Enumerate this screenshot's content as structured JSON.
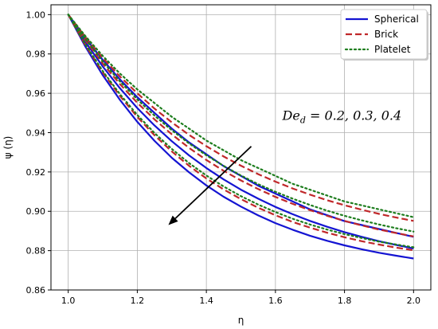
{
  "chart_data": {
    "type": "line",
    "xlabel": "η",
    "ylabel": "ψ (η)",
    "xlim": [
      0.95,
      2.05
    ],
    "ylim": [
      0.86,
      1.005
    ],
    "xticks": [
      1.0,
      1.2,
      1.4,
      1.6,
      1.8,
      2.0
    ],
    "xtick_labels": [
      "1.0",
      "1.2",
      "1.4",
      "1.6",
      "1.8",
      "2.0"
    ],
    "yticks": [
      0.86,
      0.88,
      0.9,
      0.92,
      0.94,
      0.96,
      0.98,
      1.0
    ],
    "ytick_labels": [
      "0.86",
      "0.88",
      "0.90",
      "0.92",
      "0.94",
      "0.96",
      "0.98",
      "1.00"
    ],
    "grid": true,
    "legend_position": "top-right",
    "annotation": "De_d = 0.2, 0.3, 0.4",
    "annotation_parts": {
      "base": "De",
      "sub": "d",
      "rest": " = 0.2, 0.3, 0.4"
    },
    "arrow": {
      "from": [
        1.53,
        0.933
      ],
      "to": [
        1.29,
        0.893
      ]
    },
    "x": [
      1.0,
      1.05,
      1.1,
      1.15,
      1.2,
      1.25,
      1.3,
      1.35,
      1.4,
      1.45,
      1.5,
      1.55,
      1.6,
      1.65,
      1.7,
      1.75,
      1.8,
      1.85,
      1.9,
      1.95,
      2.0
    ],
    "series": [
      {
        "name": "Spherical",
        "group": "Spherical",
        "color": "#1414d2",
        "dash": "solid",
        "values": [
          1.0,
          0.9836,
          0.9692,
          0.9566,
          0.9455,
          0.9358,
          0.9272,
          0.9198,
          0.9132,
          0.9074,
          0.9024,
          0.8979,
          0.894,
          0.8906,
          0.8876,
          0.885,
          0.8827,
          0.8807,
          0.8789,
          0.8774,
          0.876
        ]
      },
      {
        "name": "Spherical",
        "group": "Spherical",
        "color": "#1414d2",
        "dash": "solid",
        "values": [
          1.0,
          0.9861,
          0.9736,
          0.9625,
          0.9525,
          0.9436,
          0.9356,
          0.9284,
          0.922,
          0.9162,
          0.911,
          0.9064,
          0.9022,
          0.8985,
          0.8951,
          0.8921,
          0.8894,
          0.887,
          0.8848,
          0.8829,
          0.8811
        ]
      },
      {
        "name": "Spherical",
        "group": "Spherical",
        "color": "#1414d2",
        "dash": "solid",
        "values": [
          1.0,
          0.988,
          0.977,
          0.967,
          0.958,
          0.95,
          0.942,
          0.935,
          0.929,
          0.923,
          0.918,
          0.913,
          0.909,
          0.905,
          0.901,
          0.898,
          0.895,
          0.893,
          0.891,
          0.889,
          0.887
        ]
      },
      {
        "name": "Brick",
        "group": "Brick",
        "color": "#c0282a",
        "dash": "dashed",
        "values": [
          1.0,
          0.9844,
          0.9707,
          0.9586,
          0.948,
          0.9386,
          0.9304,
          0.9231,
          0.9167,
          0.9111,
          0.9062,
          0.9018,
          0.898,
          0.8946,
          0.8917,
          0.8891,
          0.8868,
          0.8848,
          0.8831,
          0.8815,
          0.8802
        ]
      },
      {
        "name": "Brick",
        "group": "Brick",
        "color": "#c0282a",
        "dash": "dashed",
        "values": [
          1.0,
          0.9869,
          0.9751,
          0.9646,
          0.9552,
          0.9467,
          0.9391,
          0.9322,
          0.9261,
          0.9206,
          0.9157,
          0.9113,
          0.9073,
          0.9038,
          0.9006,
          0.8977,
          0.8951,
          0.8928,
          0.8907,
          0.8889,
          0.8872
        ]
      },
      {
        "name": "Brick",
        "group": "Brick",
        "color": "#c0282a",
        "dash": "dashed",
        "values": [
          1.0,
          0.9885,
          0.978,
          0.9685,
          0.96,
          0.9522,
          0.9452,
          0.9388,
          0.9331,
          0.9279,
          0.9232,
          0.9189,
          0.9151,
          0.9116,
          0.9085,
          0.9056,
          0.9031,
          0.9008,
          0.8987,
          0.8968,
          0.8951
        ]
      },
      {
        "name": "Platelet",
        "group": "Platelet",
        "color": "#1e7d1e",
        "dash": "dotted",
        "values": [
          1.0,
          0.9848,
          0.9713,
          0.9595,
          0.949,
          0.9398,
          0.9317,
          0.9245,
          0.9182,
          0.9126,
          0.9077,
          0.9034,
          0.8996,
          0.8962,
          0.8933,
          0.8907,
          0.8884,
          0.8864,
          0.8846,
          0.8831,
          0.8817
        ]
      },
      {
        "name": "Platelet",
        "group": "Platelet",
        "color": "#1e7d1e",
        "dash": "dotted",
        "values": [
          1.0,
          0.9875,
          0.9762,
          0.966,
          0.9569,
          0.9486,
          0.9412,
          0.9345,
          0.9285,
          0.9231,
          0.9182,
          0.9138,
          0.9099,
          0.9064,
          0.9032,
          0.9003,
          0.8977,
          0.8954,
          0.8933,
          0.8914,
          0.8897
        ]
      },
      {
        "name": "Platelet",
        "group": "Platelet",
        "color": "#1e7d1e",
        "dash": "dotted",
        "values": [
          1.0,
          0.989,
          0.979,
          0.97,
          0.962,
          0.955,
          0.948,
          0.942,
          0.936,
          0.931,
          0.926,
          0.922,
          0.918,
          0.914,
          0.911,
          0.908,
          0.905,
          0.903,
          0.901,
          0.899,
          0.897
        ]
      }
    ],
    "legend": [
      {
        "name": "Spherical",
        "color": "#1414d2",
        "dash": "solid"
      },
      {
        "name": "Brick",
        "color": "#c0282a",
        "dash": "dashed"
      },
      {
        "name": "Platelet",
        "color": "#1e7d1e",
        "dash": "dotted"
      }
    ]
  }
}
